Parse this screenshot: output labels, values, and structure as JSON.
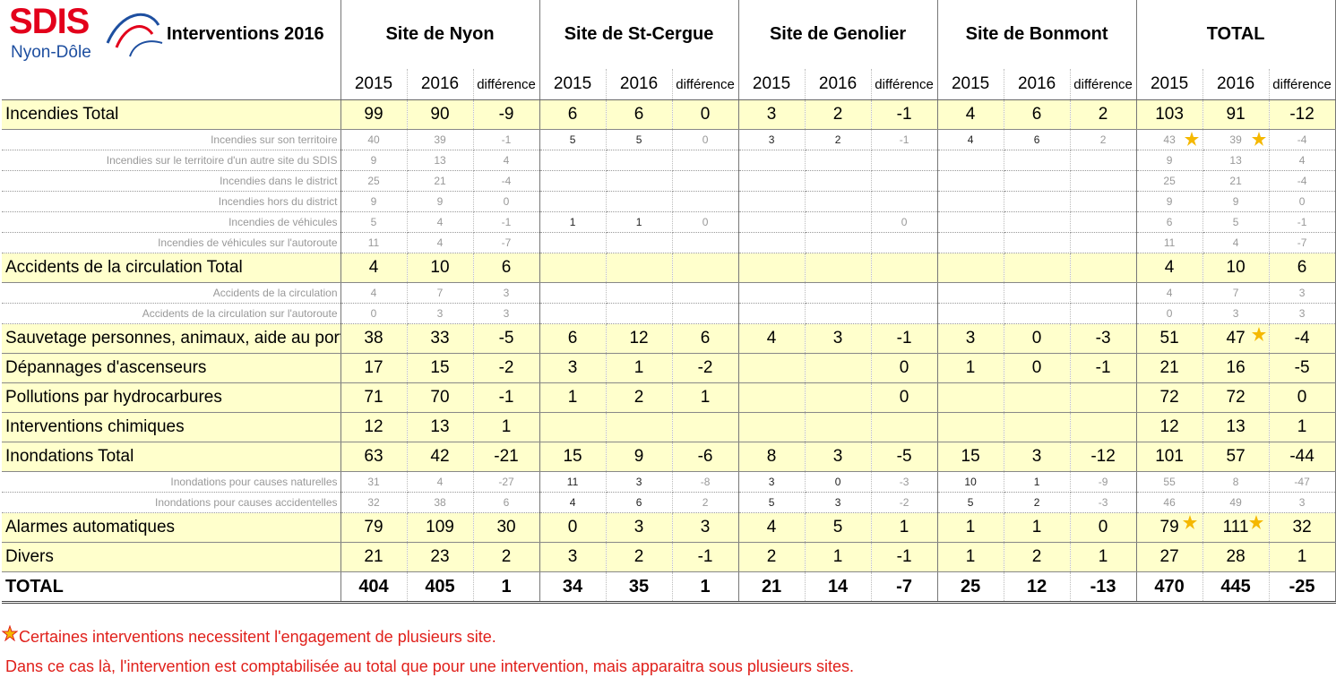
{
  "header": {
    "logo": {
      "name": "SDIS",
      "place": "Nyon-Dôle"
    },
    "title": "Interventions 2016",
    "sites": [
      {
        "name": "Site de Nyon",
        "columns": [
          2015,
          2016,
          "différence"
        ]
      },
      {
        "name": "Site de St-Cergue",
        "columns": [
          2015,
          2016,
          "différence"
        ]
      },
      {
        "name": "Site de Genolier",
        "columns": [
          2015,
          2016,
          "différence"
        ]
      },
      {
        "name": "Site de Bonmont",
        "columns": [
          2015,
          2016,
          "différence"
        ]
      },
      {
        "name": "TOTAL",
        "columns": [
          2015,
          2016,
          "différence"
        ]
      }
    ]
  },
  "table": {
    "rows": [
      {
        "label": "Incendies Total",
        "cells": [
          99,
          90,
          -9,
          6,
          6,
          0,
          3,
          2,
          -1,
          4,
          6,
          2,
          103,
          91,
          -12
        ]
      },
      {
        "label": "Incendies sur son territoire",
        "cells": [
          40,
          39,
          -1,
          5,
          5,
          0,
          3,
          2,
          -1,
          4,
          6,
          2,
          43,
          39,
          -4
        ]
      },
      {
        "label": "Incendies sur le territoire d'un autre site du SDIS",
        "cells": [
          9,
          13,
          4,
          null,
          null,
          null,
          null,
          null,
          null,
          null,
          null,
          null,
          9,
          13,
          4
        ]
      },
      {
        "label": "Incendies dans le district",
        "cells": [
          25,
          21,
          -4,
          null,
          null,
          null,
          null,
          null,
          null,
          null,
          null,
          null,
          25,
          21,
          -4
        ]
      },
      {
        "label": "Incendies hors du district",
        "cells": [
          9,
          9,
          0,
          null,
          null,
          null,
          null,
          null,
          null,
          null,
          null,
          null,
          9,
          9,
          0
        ]
      },
      {
        "label": "Incendies de véhicules",
        "cells": [
          5,
          4,
          -1,
          1,
          1,
          0,
          null,
          null,
          0,
          null,
          null,
          null,
          6,
          5,
          -1
        ]
      },
      {
        "label": "Incendies de véhicules sur l'autoroute",
        "cells": [
          11,
          4,
          -7,
          null,
          null,
          null,
          null,
          null,
          null,
          null,
          null,
          null,
          11,
          4,
          -7
        ]
      },
      {
        "label": "Accidents de la circulation Total",
        "cells": [
          4,
          10,
          6,
          null,
          null,
          null,
          null,
          null,
          null,
          null,
          null,
          null,
          4,
          10,
          6
        ]
      },
      {
        "label": "Accidents de la circulation",
        "cells": [
          4,
          7,
          3,
          null,
          null,
          null,
          null,
          null,
          null,
          null,
          null,
          null,
          4,
          7,
          3
        ]
      },
      {
        "label": "Accidents de la circulation sur l'autoroute",
        "cells": [
          0,
          3,
          3,
          null,
          null,
          null,
          null,
          null,
          null,
          null,
          null,
          null,
          0,
          3,
          3
        ]
      },
      {
        "label": "Sauvetage personnes, animaux, aide au portage",
        "cells": [
          38,
          33,
          -5,
          6,
          12,
          6,
          4,
          3,
          -1,
          3,
          0,
          -3,
          51,
          47,
          -4
        ]
      },
      {
        "label": "Dépannages d'ascenseurs",
        "cells": [
          17,
          15,
          -2,
          3,
          1,
          -2,
          null,
          null,
          0,
          1,
          0,
          -1,
          21,
          16,
          -5
        ]
      },
      {
        "label": "Pollutions par hydrocarbures",
        "cells": [
          71,
          70,
          -1,
          1,
          2,
          1,
          null,
          null,
          0,
          null,
          null,
          null,
          72,
          72,
          0
        ]
      },
      {
        "label": "Interventions chimiques",
        "cells": [
          12,
          13,
          1,
          null,
          null,
          null,
          null,
          null,
          null,
          null,
          null,
          null,
          12,
          13,
          1
        ]
      },
      {
        "label": "Inondations Total",
        "cells": [
          63,
          42,
          -21,
          15,
          9,
          -6,
          8,
          3,
          -5,
          15,
          3,
          -12,
          101,
          57,
          -44
        ]
      },
      {
        "label": "Inondations pour causes naturelles",
        "cells": [
          31,
          4,
          -27,
          11,
          3,
          -8,
          3,
          0,
          -3,
          10,
          1,
          -9,
          55,
          8,
          -47
        ]
      },
      {
        "label": "Inondations pour causes accidentelles",
        "cells": [
          32,
          38,
          6,
          4,
          6,
          2,
          5,
          3,
          -2,
          5,
          2,
          -3,
          46,
          49,
          3
        ]
      },
      {
        "label": "Alarmes automatiques",
        "cells": [
          79,
          109,
          30,
          0,
          3,
          3,
          4,
          5,
          1,
          1,
          1,
          0,
          79,
          111,
          32
        ]
      },
      {
        "label": "Divers",
        "cells": [
          21,
          23,
          2,
          3,
          2,
          -1,
          2,
          1,
          -1,
          1,
          2,
          1,
          27,
          28,
          1
        ]
      },
      {
        "label": "TOTAL",
        "cells": [
          404,
          405,
          1,
          34,
          35,
          1,
          21,
          14,
          -7,
          25,
          12,
          -13,
          470,
          445,
          -25
        ]
      }
    ]
  },
  "notes": [
    "Certaines interventions necessitent l'engagement de plusieurs site.",
    "Dans ce cas là, l'intervention est comptabilisée au total que pour une intervention, mais apparaitra sous plusieurs sites."
  ]
}
